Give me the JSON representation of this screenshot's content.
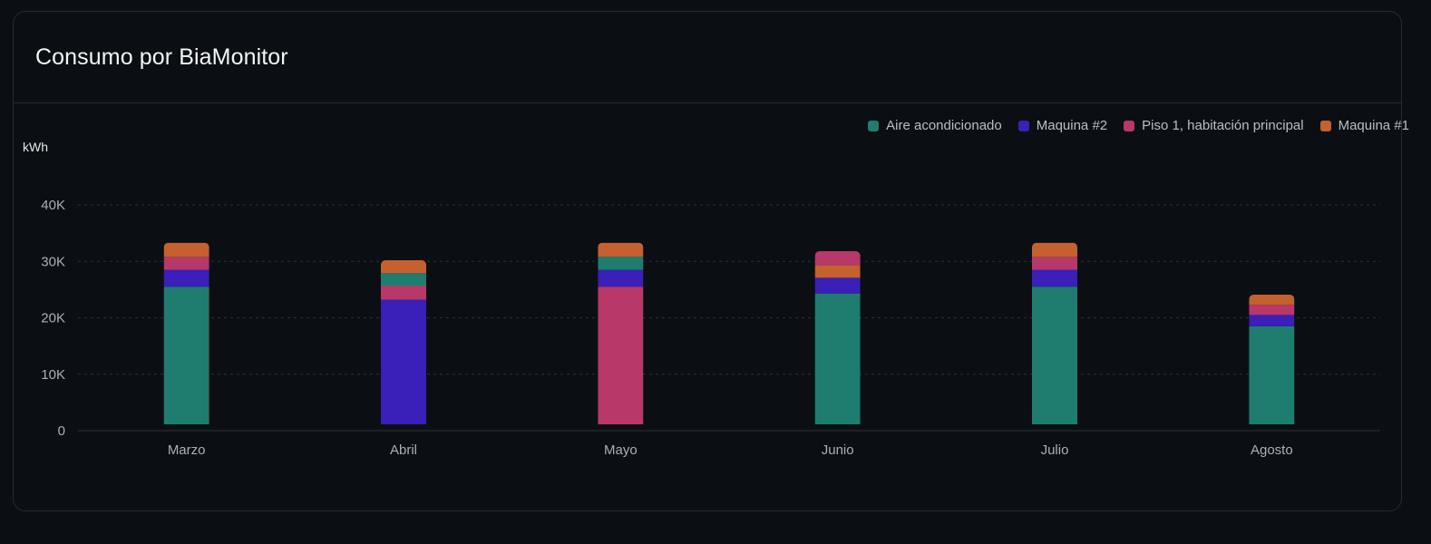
{
  "card": {
    "title": "Consumo por BiaMonitor",
    "unit": "kWh"
  },
  "legend": [
    {
      "label": "Aire acondicionado",
      "color": "#1f7d6f"
    },
    {
      "label": "Maquina #2",
      "color": "#3a1fb8"
    },
    {
      "label": "Piso 1, habitación principal",
      "color": "#b8386a"
    },
    {
      "label": "Maquina #1",
      "color": "#c4612e"
    }
  ],
  "chart_data": {
    "type": "bar",
    "stacked": true,
    "ylabel": "kWh",
    "ylim": [
      0,
      40000
    ],
    "yticks": [
      0,
      10000,
      20000,
      30000,
      40000
    ],
    "ytick_labels": [
      "0",
      "10K",
      "20K",
      "30K",
      "40K"
    ],
    "grid": true,
    "legend_position": "top-right",
    "categories": [
      "Marzo",
      "Abril",
      "Mayo",
      "Junio",
      "Julio",
      "Agosto"
    ],
    "bars": [
      {
        "category": "Marzo",
        "segments": [
          {
            "series": "Aire acondicionado",
            "value": 25500
          },
          {
            "series": "Maquina #2",
            "value": 3000
          },
          {
            "series": "Piso 1, habitación principal",
            "value": 2300
          },
          {
            "series": "Maquina #1",
            "value": 2500
          }
        ]
      },
      {
        "category": "Abril",
        "segments": [
          {
            "series": "Maquina #2",
            "value": 23200
          },
          {
            "series": "Piso 1, habitación principal",
            "value": 2500
          },
          {
            "series": "Aire acondicionado",
            "value": 2200
          },
          {
            "series": "Maquina #1",
            "value": 2300
          }
        ]
      },
      {
        "category": "Mayo",
        "segments": [
          {
            "series": "Piso 1, habitación principal",
            "value": 25500
          },
          {
            "series": "Maquina #2",
            "value": 3000
          },
          {
            "series": "Aire acondicionado",
            "value": 2300
          },
          {
            "series": "Maquina #1",
            "value": 2500
          }
        ]
      },
      {
        "category": "Junio",
        "segments": [
          {
            "series": "Aire acondicionado",
            "value": 24300
          },
          {
            "series": "Maquina #2",
            "value": 2800
          },
          {
            "series": "Maquina #1",
            "value": 2200
          },
          {
            "series": "Piso 1, habitación principal",
            "value": 2500
          }
        ]
      },
      {
        "category": "Julio",
        "segments": [
          {
            "series": "Aire acondicionado",
            "value": 25500
          },
          {
            "series": "Maquina #2",
            "value": 3000
          },
          {
            "series": "Piso 1, habitación principal",
            "value": 2300
          },
          {
            "series": "Maquina #1",
            "value": 2500
          }
        ]
      },
      {
        "category": "Agosto",
        "segments": [
          {
            "series": "Aire acondicionado",
            "value": 18500
          },
          {
            "series": "Maquina #2",
            "value": 2000
          },
          {
            "series": "Piso 1, habitación principal",
            "value": 1800
          },
          {
            "series": "Maquina #1",
            "value": 1800
          }
        ]
      }
    ]
  }
}
